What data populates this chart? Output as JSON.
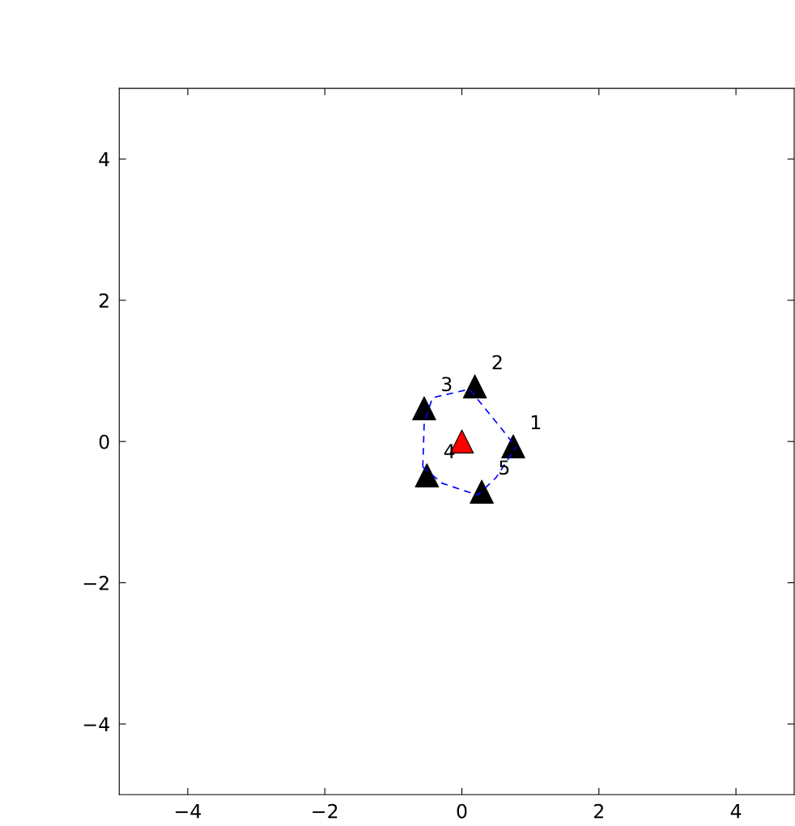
{
  "chart_data": {
    "type": "scatter",
    "xlim": [
      -5,
      4.85
    ],
    "ylim": [
      -5,
      5
    ],
    "xticks": [
      {
        "value": -4,
        "label": "−4"
      },
      {
        "value": -2,
        "label": "−2"
      },
      0,
      2,
      4
    ],
    "yticks": [
      {
        "value": -4,
        "label": "−4"
      },
      {
        "value": -2,
        "label": "−2"
      },
      0,
      2,
      4
    ],
    "grid": false,
    "legend": false,
    "series": [
      {
        "type": "line",
        "line_style": "dashed",
        "color": "#0000ff",
        "x": [
          -0.57,
          -0.55,
          -0.43,
          0.11,
          0.58,
          0.79
        ],
        "values": [
          -0.36,
          0.26,
          0.62,
          0.74,
          0.18,
          -0.08
        ]
      },
      {
        "type": "line",
        "line_style": "dashed",
        "color": "#0000ff",
        "x": [
          -0.57,
          -0.29,
          0.23,
          0.5,
          0.79
        ],
        "values": [
          -0.36,
          -0.59,
          -0.76,
          -0.51,
          -0.08
        ]
      },
      {
        "marker": "triangle",
        "color": "#000000",
        "x": [
          0.75,
          0.19,
          -0.55,
          -0.51,
          0.29
        ],
        "values": [
          -0.07,
          0.78,
          0.47,
          -0.48,
          -0.71
        ]
      },
      {
        "marker": "triangle",
        "color": "#ff0000",
        "x": [
          0
        ],
        "values": [
          0
        ]
      }
    ],
    "annotations": [
      "1",
      "2",
      "3",
      "4",
      "5"
    ]
  }
}
